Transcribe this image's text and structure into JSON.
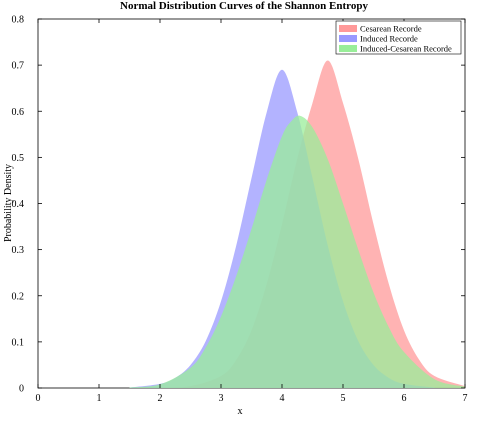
{
  "chart_data": {
    "type": "area",
    "title": "Normal Distribution Curves of the Shannon Entropy",
    "xlabel": "x",
    "ylabel": "Probability Density",
    "xlim": [
      0,
      7
    ],
    "ylim": [
      0,
      0.8
    ],
    "xticks": [
      "0",
      "1",
      "2",
      "3",
      "4",
      "5",
      "6",
      "7"
    ],
    "yticks": [
      "0",
      "0.1",
      "0.2",
      "0.3",
      "0.4",
      "0.5",
      "0.6",
      "0.7",
      "0.8"
    ],
    "legend_position": "top-right",
    "series": [
      {
        "name": "Cesarean Recorde",
        "color": "#ff9999",
        "x": [
          2.0,
          2.5,
          3.0,
          3.25,
          3.5,
          3.75,
          4.0,
          4.25,
          4.5,
          4.75,
          5.0,
          5.25,
          5.5,
          5.75,
          6.0,
          6.25,
          6.5,
          7.0
        ],
        "y": [
          0.001,
          0.004,
          0.026,
          0.061,
          0.125,
          0.226,
          0.355,
          0.497,
          0.618,
          0.71,
          0.618,
          0.497,
          0.355,
          0.226,
          0.125,
          0.061,
          0.026,
          0.004
        ]
      },
      {
        "name": "Induced Recorde",
        "color": "#9999ff",
        "x": [
          1.5,
          2.0,
          2.25,
          2.5,
          2.75,
          3.0,
          3.25,
          3.5,
          3.75,
          4.0,
          4.25,
          4.5,
          4.75,
          5.0,
          5.25,
          5.5,
          5.75,
          6.0,
          6.5
        ],
        "y": [
          0.001,
          0.009,
          0.022,
          0.05,
          0.102,
          0.188,
          0.309,
          0.455,
          0.598,
          0.69,
          0.598,
          0.455,
          0.309,
          0.188,
          0.102,
          0.05,
          0.022,
          0.009,
          0.001
        ]
      },
      {
        "name": "Induced-Cesarean Recorde",
        "color": "#99ee99",
        "x": [
          1.5,
          2.0,
          2.5,
          2.75,
          3.0,
          3.25,
          3.5,
          3.75,
          4.0,
          4.15,
          4.3,
          4.5,
          4.75,
          5.0,
          5.25,
          5.5,
          5.75,
          6.0,
          6.5,
          7.0
        ],
        "y": [
          0.001,
          0.008,
          0.044,
          0.088,
          0.155,
          0.243,
          0.345,
          0.452,
          0.546,
          0.578,
          0.59,
          0.565,
          0.496,
          0.4,
          0.3,
          0.207,
          0.132,
          0.078,
          0.019,
          0.003
        ]
      }
    ]
  }
}
